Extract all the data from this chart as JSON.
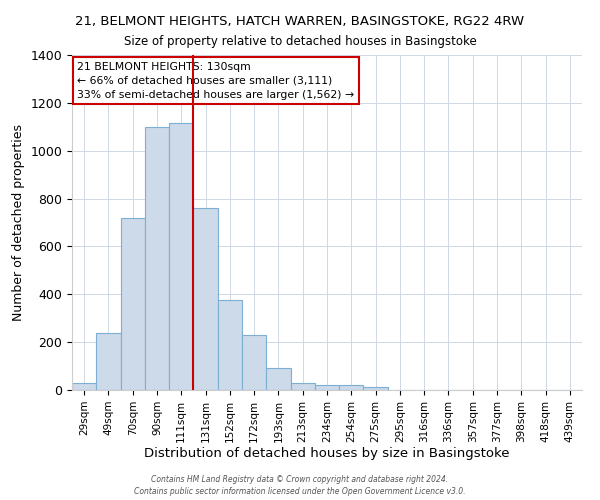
{
  "title": "21, BELMONT HEIGHTS, HATCH WARREN, BASINGSTOKE, RG22 4RW",
  "subtitle": "Size of property relative to detached houses in Basingstoke",
  "xlabel": "Distribution of detached houses by size in Basingstoke",
  "ylabel": "Number of detached properties",
  "bar_labels": [
    "29sqm",
    "49sqm",
    "70sqm",
    "90sqm",
    "111sqm",
    "131sqm",
    "152sqm",
    "172sqm",
    "193sqm",
    "213sqm",
    "234sqm",
    "254sqm",
    "275sqm",
    "295sqm",
    "316sqm",
    "336sqm",
    "357sqm",
    "377sqm",
    "398sqm",
    "418sqm",
    "439sqm"
  ],
  "bar_heights": [
    30,
    240,
    720,
    1100,
    1115,
    760,
    375,
    228,
    90,
    28,
    22,
    20,
    12,
    0,
    0,
    0,
    0,
    0,
    0,
    0,
    0
  ],
  "bar_color": "#ccdaea",
  "bar_edgecolor": "#7bafd4",
  "marker_color": "#cc0000",
  "ylim": [
    0,
    1400
  ],
  "yticks": [
    0,
    200,
    400,
    600,
    800,
    1000,
    1200,
    1400
  ],
  "annotation_line1": "21 BELMONT HEIGHTS: 130sqm",
  "annotation_line2": "← 66% of detached houses are smaller (3,111)",
  "annotation_line3": "33% of semi-detached houses are larger (1,562) →",
  "footer1": "Contains HM Land Registry data © Crown copyright and database right 2024.",
  "footer2": "Contains public sector information licensed under the Open Government Licence v3.0."
}
